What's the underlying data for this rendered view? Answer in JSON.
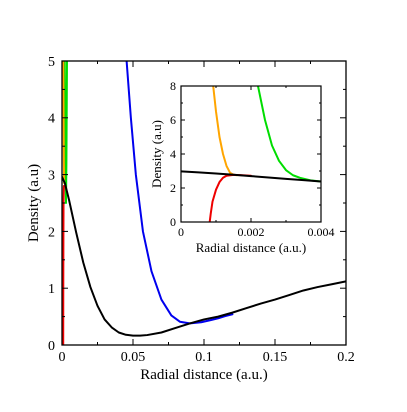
{
  "chart_data": [
    {
      "id": "main",
      "type": "line",
      "xlabel": "Radial distance (a.u.)",
      "ylabel": "Density (a.u)",
      "xlim": [
        0,
        0.2
      ],
      "ylim": [
        0,
        5
      ],
      "x_ticks": [
        0,
        0.05,
        0.1,
        0.15,
        0.2
      ],
      "x_tick_labels": [
        "0",
        "0.05",
        "0.1",
        "0.15",
        "0.2"
      ],
      "y_ticks": [
        0,
        1,
        2,
        3,
        4,
        5
      ],
      "y_tick_labels": [
        "0",
        "1",
        "2",
        "3",
        "4",
        "5"
      ],
      "grid": false,
      "series": [
        {
          "color": "#0000ee",
          "points": [
            [
              0.0455,
              5.0
            ],
            [
              0.0485,
              4.0
            ],
            [
              0.052,
              3.0
            ],
            [
              0.057,
              2.0
            ],
            [
              0.063,
              1.3
            ],
            [
              0.07,
              0.8
            ],
            [
              0.077,
              0.52
            ],
            [
              0.083,
              0.41
            ],
            [
              0.09,
              0.38
            ],
            [
              0.098,
              0.4
            ],
            [
              0.105,
              0.44
            ],
            [
              0.11,
              0.47
            ],
            [
              0.115,
              0.51
            ],
            [
              0.12,
              0.54
            ]
          ]
        },
        {
          "color": "#00dd00",
          "points": [
            [
              0.0019,
              5.0
            ],
            [
              0.0021,
              4.0
            ],
            [
              0.0024,
              3.0
            ],
            [
              0.0028,
              2.5
            ],
            [
              0.0031,
              3.2
            ],
            [
              0.0035,
              5.0
            ]
          ]
        },
        {
          "color": "#ffa500",
          "points": [
            [
              0.0009,
              5.0
            ],
            [
              0.0011,
              4.0
            ],
            [
              0.0013,
              3.2
            ],
            [
              0.0015,
              2.85
            ]
          ]
        },
        {
          "color": "#ee0000",
          "points": [
            [
              0.00085,
              0.0
            ],
            [
              0.0009,
              1.0
            ],
            [
              0.001,
              2.0
            ],
            [
              0.0011,
              2.6
            ],
            [
              0.0013,
              2.8
            ]
          ]
        },
        {
          "color": "#000000",
          "points": [
            [
              0.0,
              2.96
            ],
            [
              0.002,
              2.85
            ],
            [
              0.005,
              2.55
            ],
            [
              0.01,
              1.98
            ],
            [
              0.015,
              1.45
            ],
            [
              0.02,
              1.02
            ],
            [
              0.025,
              0.69
            ],
            [
              0.03,
              0.45
            ],
            [
              0.035,
              0.31
            ],
            [
              0.04,
              0.22
            ],
            [
              0.045,
              0.18
            ],
            [
              0.05,
              0.165
            ],
            [
              0.055,
              0.165
            ],
            [
              0.06,
              0.175
            ],
            [
              0.07,
              0.22
            ],
            [
              0.08,
              0.3
            ],
            [
              0.09,
              0.38
            ],
            [
              0.1,
              0.45
            ],
            [
              0.11,
              0.5
            ],
            [
              0.12,
              0.57
            ],
            [
              0.13,
              0.65
            ],
            [
              0.14,
              0.73
            ],
            [
              0.15,
              0.8
            ],
            [
              0.16,
              0.88
            ],
            [
              0.17,
              0.96
            ],
            [
              0.18,
              1.02
            ],
            [
              0.19,
              1.07
            ],
            [
              0.2,
              1.12
            ]
          ]
        }
      ]
    },
    {
      "id": "inset",
      "type": "line",
      "xlabel": "Radial distance (a.u.)",
      "ylabel": "Density (a.u)",
      "xlim": [
        0,
        0.004
      ],
      "ylim": [
        0,
        8
      ],
      "x_ticks": [
        0,
        0.002,
        0.004
      ],
      "x_tick_labels": [
        "0",
        "0.002",
        "0.004"
      ],
      "y_ticks": [
        0,
        2,
        4,
        6,
        8
      ],
      "y_tick_labels": [
        "0",
        "2",
        "4",
        "6",
        "8"
      ],
      "grid": false,
      "series": [
        {
          "color": "#ffa500",
          "points": [
            [
              0.00092,
              8.0
            ],
            [
              0.001,
              6.5
            ],
            [
              0.0011,
              5.0
            ],
            [
              0.0012,
              4.0
            ],
            [
              0.0013,
              3.3
            ],
            [
              0.0014,
              2.9
            ],
            [
              0.0015,
              2.78
            ],
            [
              0.0016,
              2.75
            ]
          ]
        },
        {
          "color": "#00dd00",
          "points": [
            [
              0.0022,
              8.0
            ],
            [
              0.0024,
              6.0
            ],
            [
              0.0026,
              4.5
            ],
            [
              0.0028,
              3.6
            ],
            [
              0.003,
              3.05
            ],
            [
              0.0032,
              2.75
            ],
            [
              0.0034,
              2.6
            ],
            [
              0.0037,
              2.45
            ],
            [
              0.004,
              2.38
            ]
          ]
        },
        {
          "color": "#ee0000",
          "points": [
            [
              0.00082,
              0.0
            ],
            [
              0.00085,
              0.5
            ],
            [
              0.0009,
              1.2
            ],
            [
              0.001,
              1.9
            ],
            [
              0.0011,
              2.35
            ],
            [
              0.0012,
              2.6
            ],
            [
              0.0013,
              2.72
            ],
            [
              0.0015,
              2.77
            ],
            [
              0.0017,
              2.76
            ],
            [
              0.002,
              2.72
            ]
          ]
        },
        {
          "color": "#000000",
          "points": [
            [
              0.0,
              2.98
            ],
            [
              0.0005,
              2.92
            ],
            [
              0.001,
              2.85
            ],
            [
              0.0015,
              2.78
            ],
            [
              0.002,
              2.7
            ],
            [
              0.0025,
              2.62
            ],
            [
              0.003,
              2.54
            ],
            [
              0.0035,
              2.46
            ],
            [
              0.004,
              2.38
            ]
          ]
        }
      ]
    }
  ]
}
